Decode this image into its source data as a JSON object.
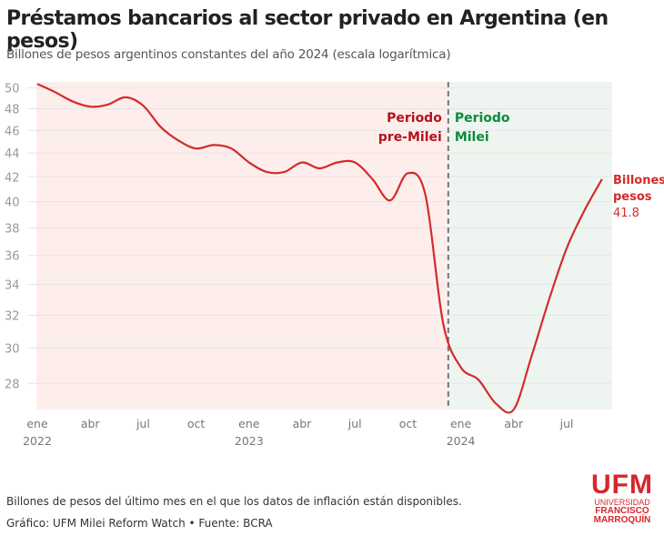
{
  "title": "Préstamos bancarios al sector privado en Argentina (en pesos)",
  "subtitle": "Billones de pesos argentinos constantes del año 2024 (escala logarítmica)",
  "note": "Billones de pesos del último mes en el que los datos de inflación están disponibles.",
  "source": "Gráfico: UFM Milei Reform Watch • Fuente: BCRA",
  "logo": {
    "line1": "UFM",
    "line2": "UNIVERSIDAD",
    "line3": "FRANCISCO",
    "line4": "MARROQUÍN"
  },
  "colors": {
    "line": "#d42b2b",
    "pre_bg": "#fdeeec",
    "milei_bg": "#eef5f0",
    "pre_label": "#b5121b",
    "milei_label": "#0e8a3e"
  },
  "chart_data": {
    "type": "line",
    "yscale": "log",
    "ylim": [
      26.6,
      50.6
    ],
    "yticks": [
      28,
      30,
      32,
      34,
      36,
      38,
      40,
      42,
      44,
      46,
      48,
      50
    ],
    "grid": true,
    "xticks": [
      {
        "month": "ene",
        "year": "2022",
        "i": 0
      },
      {
        "month": "abr",
        "year": "",
        "i": 3
      },
      {
        "month": "jul",
        "year": "",
        "i": 6
      },
      {
        "month": "oct",
        "year": "",
        "i": 9
      },
      {
        "month": "ene",
        "year": "2023",
        "i": 12
      },
      {
        "month": "abr",
        "year": "",
        "i": 15
      },
      {
        "month": "jul",
        "year": "",
        "i": 18
      },
      {
        "month": "oct",
        "year": "",
        "i": 21
      },
      {
        "month": "ene",
        "year": "2024",
        "i": 24
      },
      {
        "month": "abr",
        "year": "",
        "i": 27
      },
      {
        "month": "jul",
        "year": "",
        "i": 30
      }
    ],
    "x": [
      "2022-01",
      "2022-02",
      "2022-03",
      "2022-04",
      "2022-05",
      "2022-06",
      "2022-07",
      "2022-08",
      "2022-09",
      "2022-10",
      "2022-11",
      "2022-12",
      "2023-01",
      "2023-02",
      "2023-03",
      "2023-04",
      "2023-05",
      "2023-06",
      "2023-07",
      "2023-08",
      "2023-09",
      "2023-10",
      "2023-11",
      "2023-12",
      "2024-01",
      "2024-02",
      "2024-03",
      "2024-04",
      "2024-05",
      "2024-06",
      "2024-07",
      "2024-08",
      "2024-09"
    ],
    "values": [
      50.4,
      49.6,
      48.7,
      48.2,
      48.4,
      49.1,
      48.3,
      46.3,
      45.1,
      44.4,
      44.7,
      44.4,
      43.2,
      42.4,
      42.4,
      43.2,
      42.7,
      43.2,
      43.2,
      41.8,
      40.1,
      42.3,
      40.5,
      31.5,
      28.9,
      28.2,
      26.9,
      26.6,
      29.5,
      33.0,
      36.5,
      39.3,
      41.8
    ],
    "periods": {
      "pre_label": [
        "Periodo",
        "pre-Milei"
      ],
      "milei_label": [
        "Periodo",
        "Milei"
      ],
      "divider": "2023-12-10"
    },
    "end_label": {
      "line1": "Billones",
      "line2": "pesos",
      "value": "41.8"
    }
  }
}
